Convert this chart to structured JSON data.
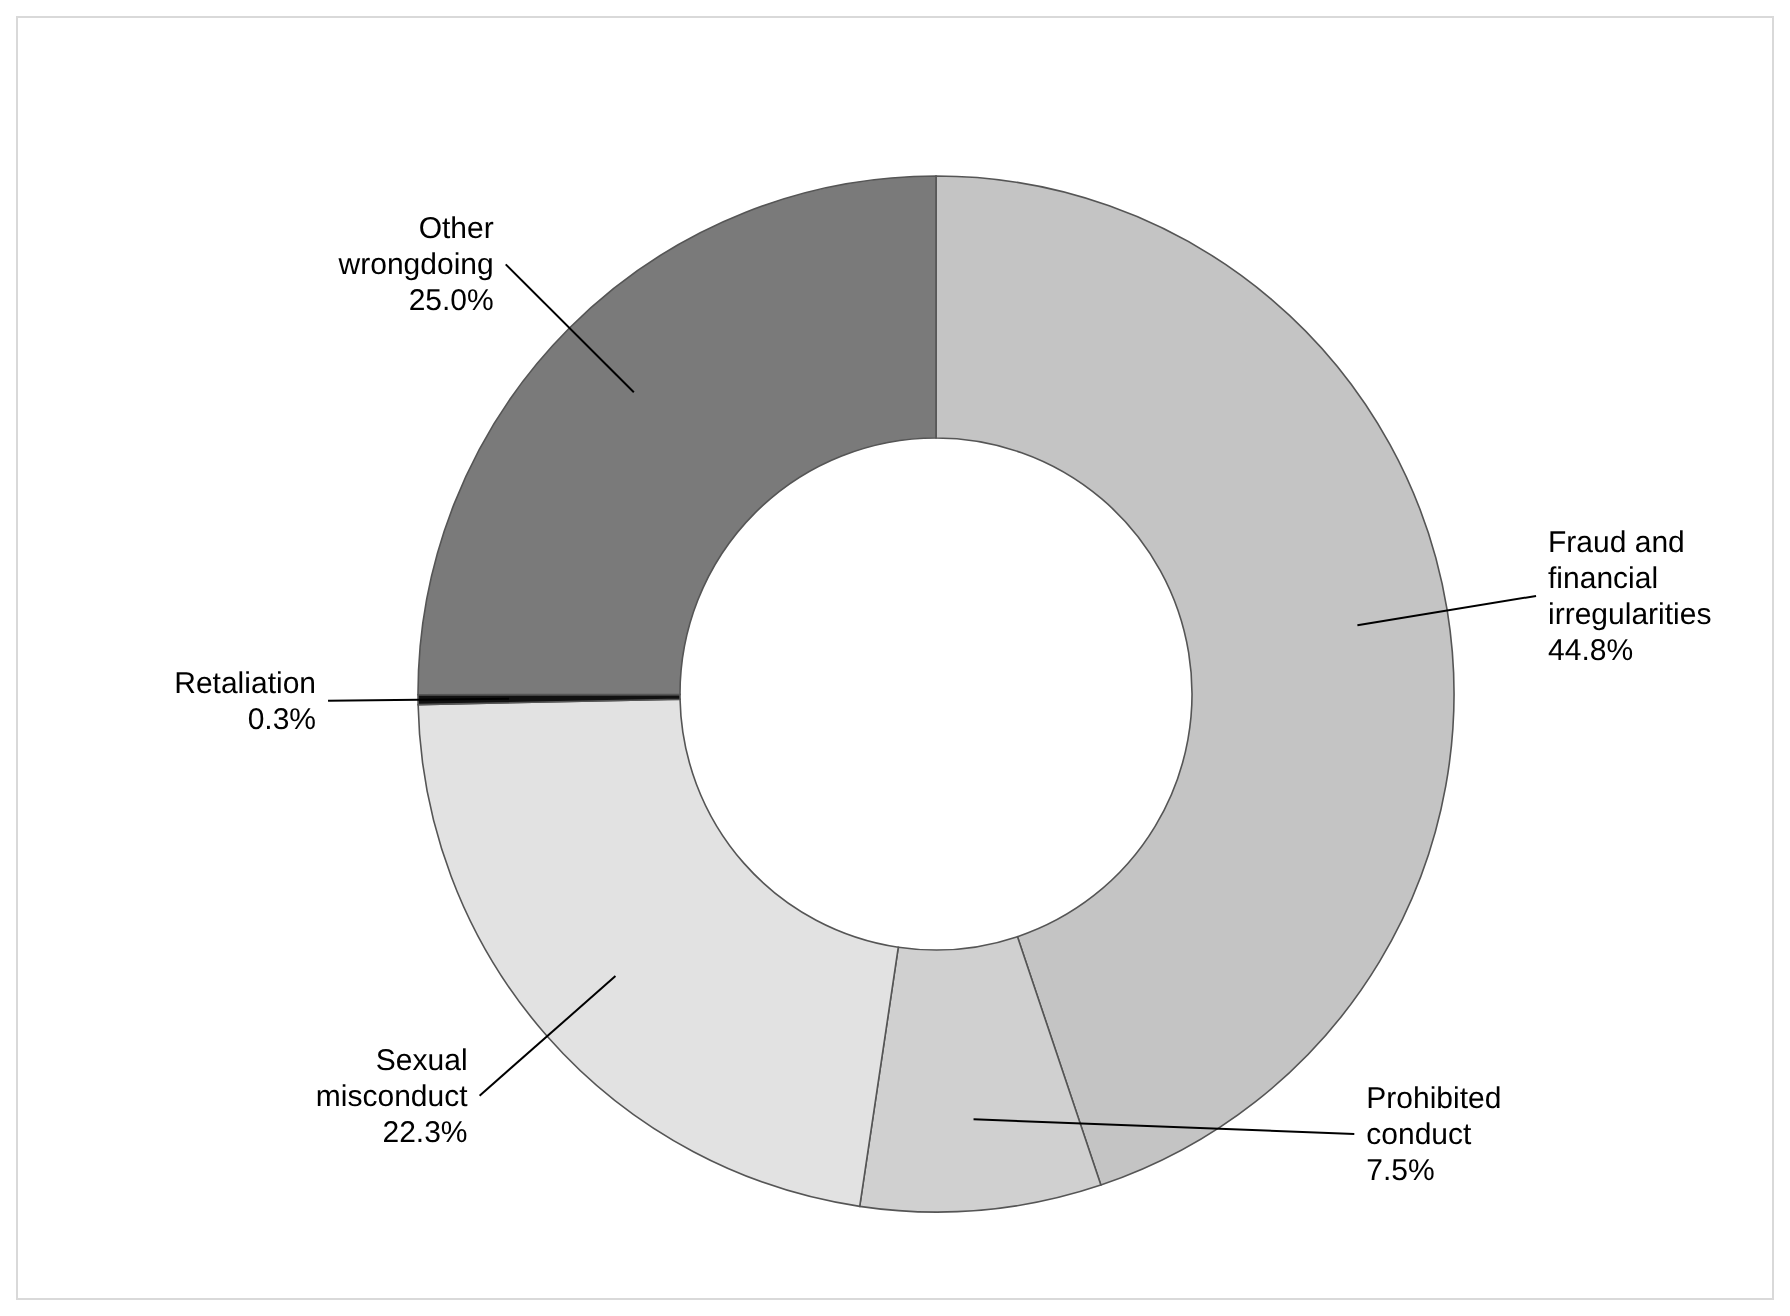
{
  "chart_data": {
    "type": "donut",
    "categories": [
      "Fraud and financial irregularities",
      "Prohibited conduct",
      "Sexual misconduct",
      "Retaliation",
      "Other wrongdoing"
    ],
    "values": [
      44.8,
      7.5,
      22.3,
      0.3,
      25.0
    ],
    "colors": [
      "#c4c4c4",
      "#d0d0d0",
      "#e2e2e2",
      "#111111",
      "#7a7a7a"
    ],
    "value_labels": [
      "44.8%",
      "7.5%",
      "22.3%",
      "0.3%",
      "25.0%"
    ]
  }
}
